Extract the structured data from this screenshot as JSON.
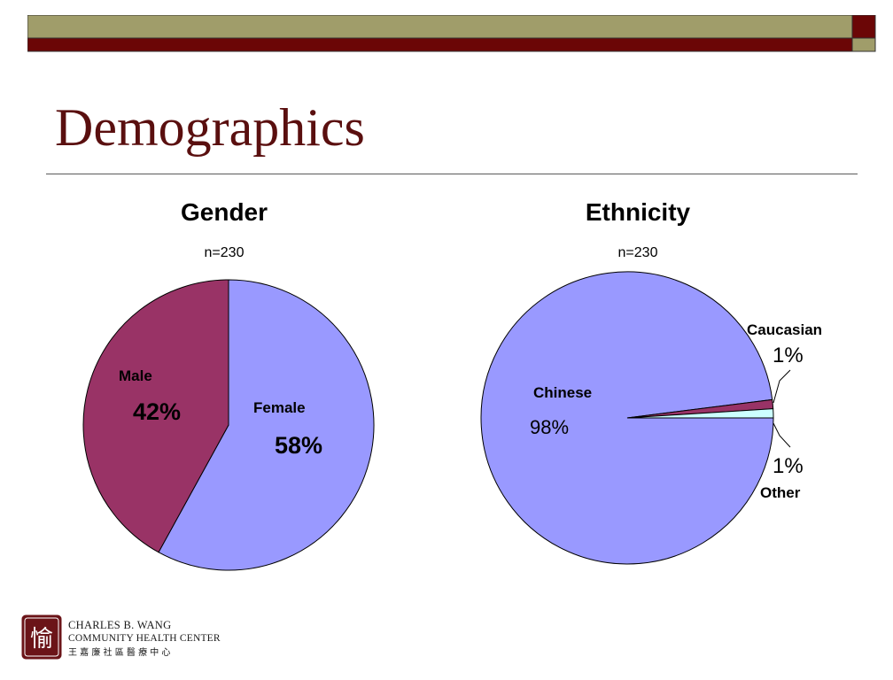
{
  "slide": {
    "title": "Demographics",
    "colors": {
      "bar_olive": "#a09d6a",
      "bar_maroon": "#6b0606",
      "title": "#5a0f0f"
    }
  },
  "logo": {
    "name_line1": "CHARLES B. WANG",
    "name_line2": "COMMUNITY HEALTH CENTER",
    "chinese": "王 嘉 廉 社 區 醫 療 中 心",
    "glyph": "愉",
    "color": "#6b1418"
  },
  "chart_data": [
    {
      "type": "pie",
      "title": "Gender",
      "subtitle": "n=230",
      "slices": [
        {
          "label": "Female",
          "value": 58,
          "value_label": "58%",
          "color": "#9999ff"
        },
        {
          "label": "Male",
          "value": 42,
          "value_label": "42%",
          "color": "#993366"
        }
      ]
    },
    {
      "type": "pie",
      "title": "Ethnicity",
      "subtitle": "n=230",
      "slices": [
        {
          "label": "Chinese",
          "value": 98,
          "value_label": "98%",
          "color": "#9999ff"
        },
        {
          "label": "Caucasian",
          "value": 1,
          "value_label": "1%",
          "color": "#993366"
        },
        {
          "label": "Other",
          "value": 1,
          "value_label": "1%",
          "color": "#ccffff"
        }
      ]
    }
  ]
}
